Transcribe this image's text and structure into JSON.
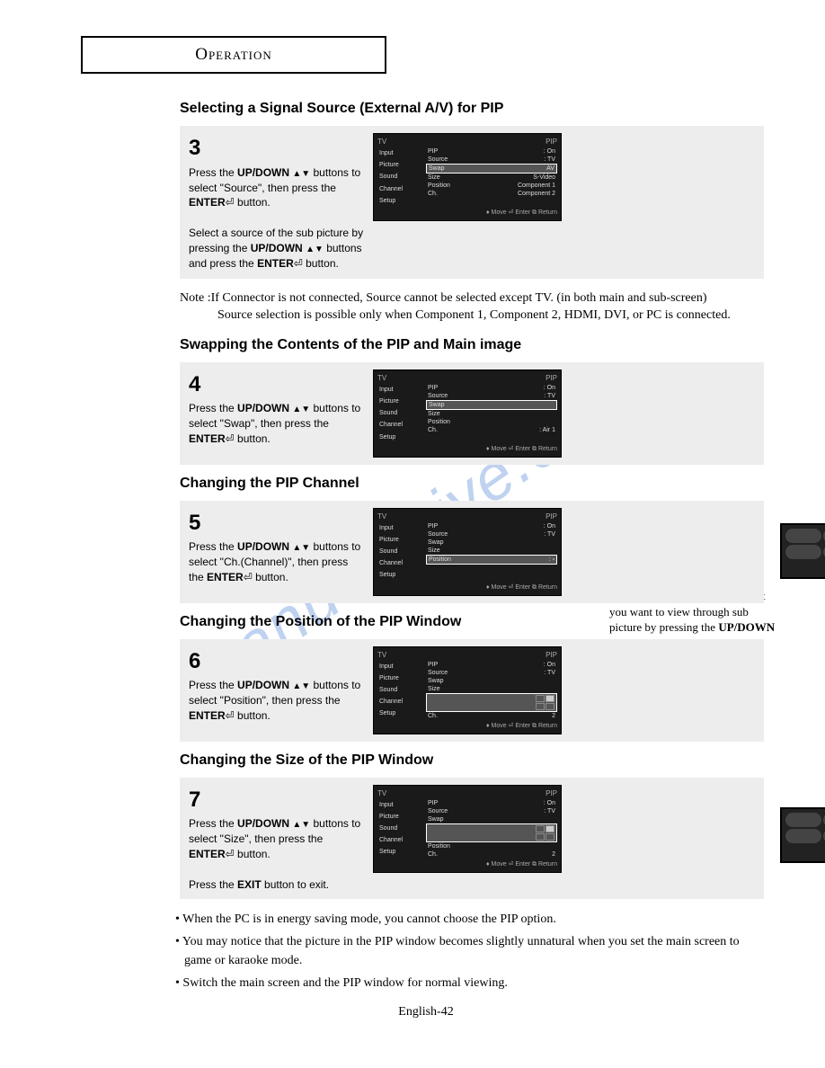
{
  "page": {
    "header": "Operation",
    "footer": "English-42",
    "watermark": "manualshive.com"
  },
  "sections": [
    {
      "title": "Selecting a Signal Source (External A/V) for PIP",
      "step_num": "3",
      "step_html": "Press the <b>UP/DOWN</b> <span class='arrows'>▲▼</span> buttons to select \"Source\", then press the <b>ENTER</b>⏎ button.<br><br>Select a source of the sub picture by pressing the <b>UP/DOWN</b> <span class='arrows'>▲▼</span> buttons and press the <b>ENTER</b>⏎ button.",
      "osd": {
        "tv": "TV",
        "pip_title": "PIP",
        "left": [
          "Input",
          "Picture",
          "Sound",
          "Channel",
          "Setup"
        ],
        "rows": [
          {
            "l": "PIP",
            "r": ": On"
          },
          {
            "l": "Source",
            "r": ": TV"
          },
          {
            "l": "Swap",
            "r": "AV",
            "hl": true
          },
          {
            "l": "Size",
            "r": "S-Video"
          },
          {
            "l": "Position",
            "r": "Component 1"
          },
          {
            "l": "Ch.",
            "r": "Component 2"
          }
        ],
        "footer": "♦ Move   ⏎ Enter   ⧉ Return"
      },
      "note": "Note :If Connector is not connected, Source cannot be selected except TV. (in both main and sub-screen)",
      "note2": "Source selection is possible only when Component 1, Component 2, HDMI, DVI, or PC is connected."
    },
    {
      "title": "Swapping the Contents of the PIP and Main image",
      "step_num": "4",
      "step_html": "Press the <b>UP/DOWN</b> <span class='arrows'>▲▼</span> buttons to select \"Swap\", then press the <b>ENTER</b>⏎ button.",
      "osd": {
        "tv": "TV",
        "pip_title": "PIP",
        "left": [
          "Input",
          "Picture",
          "Sound",
          "Channel",
          "Setup"
        ],
        "rows": [
          {
            "l": "PIP",
            "r": ": On"
          },
          {
            "l": "Source",
            "r": ": TV"
          },
          {
            "l": "Swap",
            "r": "",
            "hl": true
          },
          {
            "l": "Size",
            "r": ""
          },
          {
            "l": "Position",
            "r": ""
          },
          {
            "l": "Ch.",
            "r": ": Air   1"
          }
        ],
        "footer": "♦ Move   ⏎ Enter   ⧉ Return"
      }
    },
    {
      "title": "Changing the PIP Channel",
      "step_num": "5",
      "step_html": "Press the <b>UP/DOWN</b> <span class='arrows'>▲▼</span> buttons to select \"Ch.(Channel)\", then press the <b>ENTER</b>⏎ button.",
      "osd": {
        "tv": "TV",
        "pip_title": "PIP",
        "left": [
          "Input",
          "Picture",
          "Sound",
          "Channel",
          "Setup"
        ],
        "rows": [
          {
            "l": "PIP",
            "r": ": On"
          },
          {
            "l": "Source",
            "r": ": TV"
          },
          {
            "l": "Swap",
            "r": ""
          },
          {
            "l": "Size",
            "r": ""
          },
          {
            "l": "Position",
            "r": ": ▫",
            "hl": true
          }
        ],
        "footer": "♦ Move   ⏎ Enter   ⧉ Return"
      },
      "side": "◀ You can select the channel that you want to view through sub picture by pressing the <b>UP/DOWN</b> <span class='arrows'>▲▼</span> buttons.",
      "remote": true
    },
    {
      "title": "Changing the Position of the PIP Window",
      "step_num": "6",
      "step_html": "Press the <b>UP/DOWN</b> <span class='arrows'>▲▼</span> buttons to select \"Position\", then press the <b>ENTER</b>⏎ button.",
      "osd": {
        "tv": "TV",
        "pip_title": "PIP",
        "left": [
          "Input",
          "Picture",
          "Sound",
          "Channel",
          "Setup"
        ],
        "rows": [
          {
            "l": "PIP",
            "r": ": On"
          },
          {
            "l": "Source",
            "r": ": TV"
          },
          {
            "l": "Swap",
            "r": ""
          },
          {
            "l": "Size",
            "r": ""
          },
          {
            "l": "",
            "r": "",
            "hl": true,
            "pos": true
          },
          {
            "l": "Ch.",
            "r": "2"
          }
        ],
        "footer": "♦ Move   ⏎ Enter   ⧉ Return"
      }
    },
    {
      "title": "Changing the Size of the PIP Window",
      "step_num": "7",
      "step_html": "Press the <b>UP/DOWN</b> <span class='arrows'>▲▼</span> buttons to select \"Size\", then press the <b>ENTER</b>⏎ button.<br><br>Press the <b>EXIT</b> button to exit.",
      "osd": {
        "tv": "TV",
        "pip_title": "PIP",
        "left": [
          "Input",
          "Picture",
          "Sound",
          "Channel",
          "Setup"
        ],
        "rows": [
          {
            "l": "PIP",
            "r": ": On"
          },
          {
            "l": "Source",
            "r": ": TV"
          },
          {
            "l": "Swap",
            "r": ""
          },
          {
            "l": "",
            "r": "",
            "hl": true,
            "pos": true
          },
          {
            "l": "Position",
            "r": ""
          },
          {
            "l": "Ch.",
            "r": "2"
          }
        ],
        "footer": "♦ Move   ⏎ Enter   ⧉ Return"
      },
      "remote": true
    }
  ],
  "bullets": [
    "When the PC is in energy saving mode, you cannot choose the PIP option.",
    "You may notice that the picture in the PIP window becomes slightly unnatural when you set the main screen to game or karaoke mode.",
    "Switch the main screen and the PIP window for normal viewing."
  ]
}
